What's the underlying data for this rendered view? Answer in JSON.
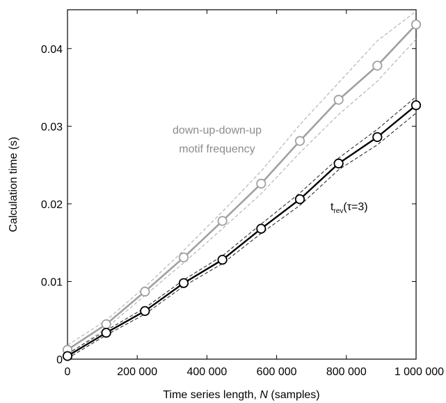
{
  "chart_data": {
    "type": "line",
    "xlabel_prefix": "Time series length, ",
    "xlabel_var": "N",
    "xlabel_suffix": " (samples)",
    "ylabel": "Calculation time (s)",
    "xlim": [
      0,
      1000000
    ],
    "ylim": [
      0,
      0.045
    ],
    "grid": false,
    "x": [
      0,
      111111,
      222222,
      333333,
      444444,
      555556,
      666667,
      777778,
      888889,
      1000000
    ],
    "x_ticks": [
      0,
      200000,
      400000,
      600000,
      800000,
      1000000
    ],
    "x_tick_labels": [
      "0",
      "200 000",
      "400 000",
      "600 000",
      "800 000",
      "1 000 000"
    ],
    "y_ticks": [
      0,
      0.01,
      0.02,
      0.03,
      0.04
    ],
    "y_tick_labels": [
      "0",
      "0.01",
      "0.02",
      "0.03",
      "0.04"
    ],
    "series": [
      {
        "name": "down-up-down-up motif frequency",
        "label_lines": [
          "down-up-down-up",
          "motif frequency"
        ],
        "color": "#a0a0a0",
        "values": [
          0.0012,
          0.0045,
          0.0087,
          0.0131,
          0.0178,
          0.0226,
          0.0281,
          0.0334,
          0.0378,
          0.0431
        ],
        "upper": [
          0.0018,
          0.005,
          0.0093,
          0.014,
          0.019,
          0.0242,
          0.0302,
          0.0356,
          0.041,
          0.0448
        ],
        "lower": [
          0.0006,
          0.004,
          0.0082,
          0.0124,
          0.0168,
          0.0213,
          0.0266,
          0.0315,
          0.0358,
          0.0412
        ]
      },
      {
        "name": "t_rev(τ=3)",
        "label_main": "t",
        "label_sub": "rev",
        "label_rest": "(τ=3)",
        "color": "#000000",
        "values": [
          0.0004,
          0.0034,
          0.0062,
          0.0098,
          0.0128,
          0.0168,
          0.0206,
          0.0252,
          0.0286,
          0.0327
        ],
        "upper": [
          0.0007,
          0.0037,
          0.0066,
          0.0102,
          0.0133,
          0.0174,
          0.0214,
          0.0259,
          0.0296,
          0.0338
        ],
        "lower": [
          0.0001,
          0.0031,
          0.0058,
          0.0094,
          0.0123,
          0.0162,
          0.0198,
          0.0244,
          0.0276,
          0.0317
        ]
      }
    ]
  }
}
